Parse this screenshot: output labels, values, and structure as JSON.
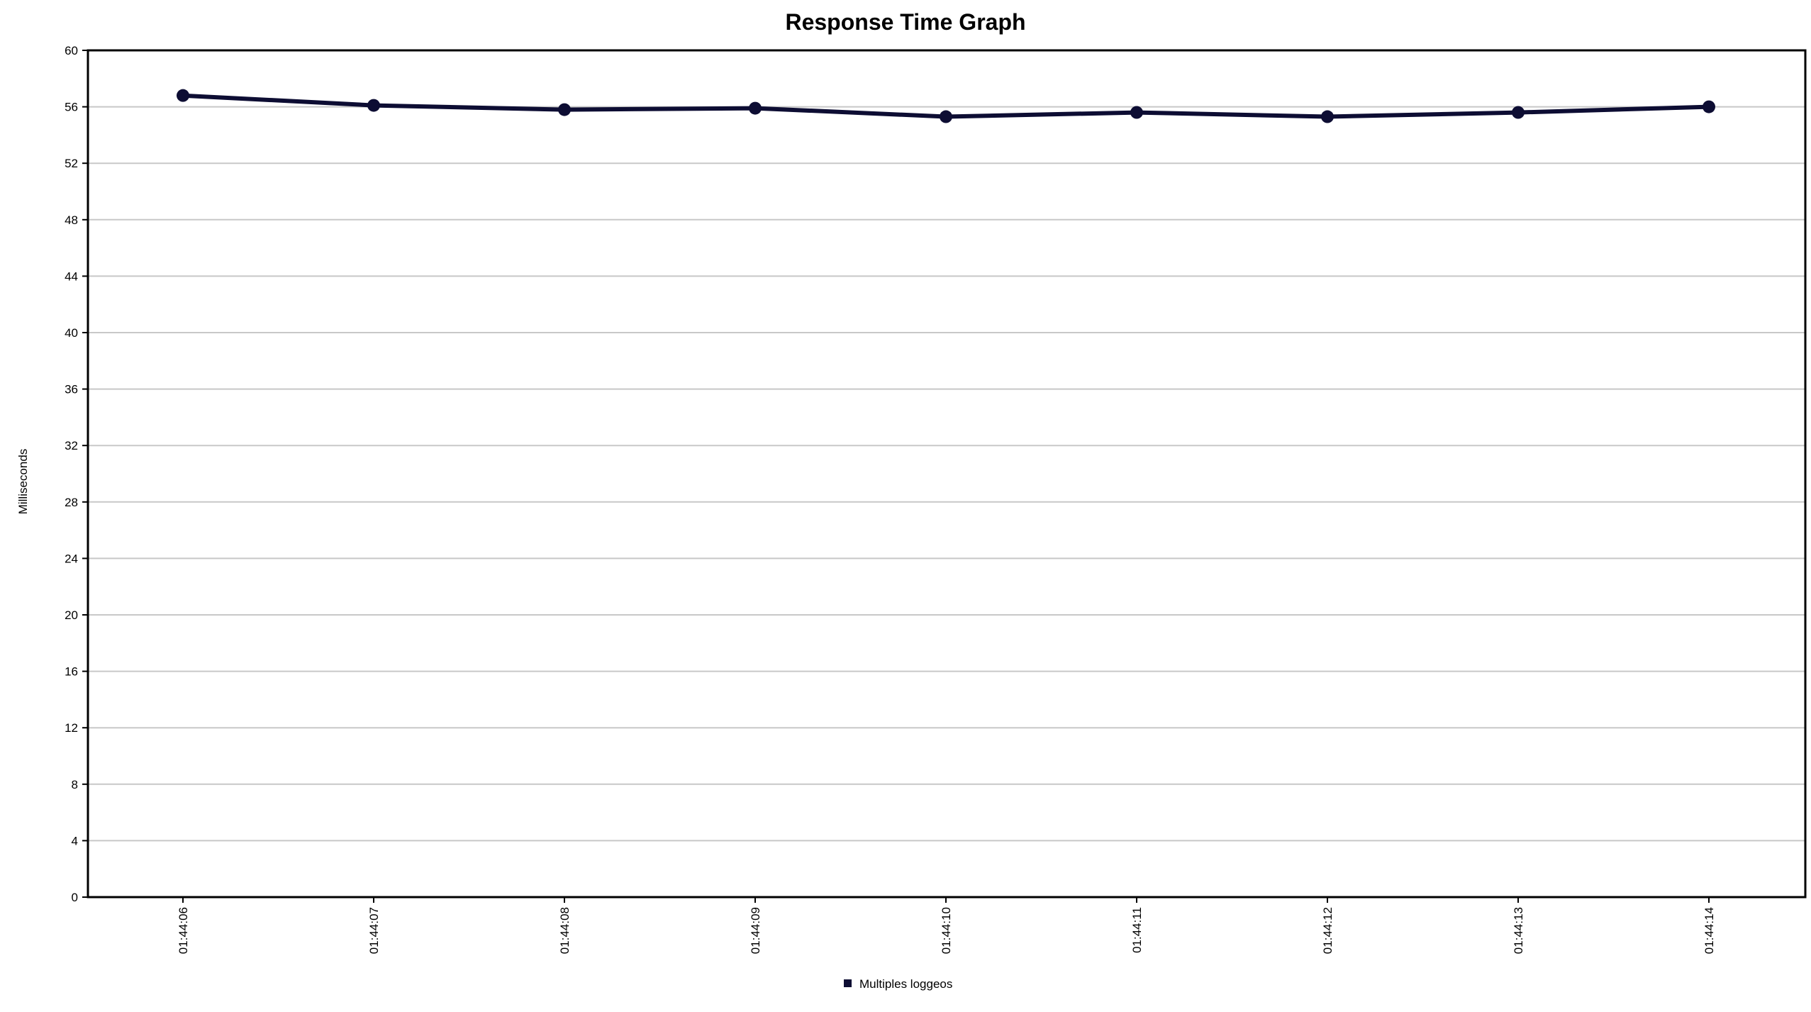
{
  "chart_data": {
    "type": "line",
    "title": "Response Time Graph",
    "xlabel": "",
    "ylabel": "Milliseconds",
    "ylim": [
      0,
      60
    ],
    "yticks": [
      "0",
      "4",
      "8",
      "12",
      "16",
      "20",
      "24",
      "28",
      "32",
      "36",
      "40",
      "44",
      "48",
      "52",
      "56",
      "60"
    ],
    "categories": [
      "01:44:06",
      "01:44:07",
      "01:44:08",
      "01:44:09",
      "01:44:10",
      "01:44:11",
      "01:44:12",
      "01:44:13",
      "01:44:14"
    ],
    "series": [
      {
        "name": "Multiples loggeos",
        "color": "#0d0d33",
        "values": [
          56.8,
          56.1,
          55.8,
          55.9,
          55.3,
          55.6,
          55.3,
          55.6,
          56.0
        ]
      }
    ],
    "grid": true,
    "legend_position": "bottom-center"
  }
}
